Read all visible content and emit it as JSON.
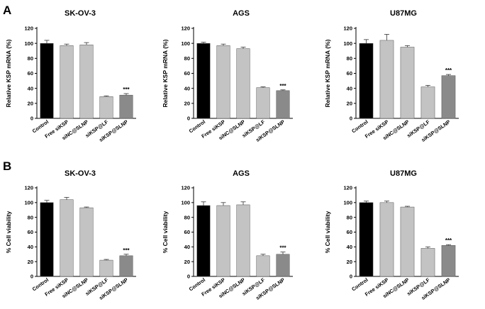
{
  "colors": {
    "Control": "#000000",
    "Free siKSP": "#c3c3c3",
    "siNC@SLNP": "#c3c3c3",
    "siKSP@LF": "#c3c3c3",
    "siKSP@SLNP": "#8a8a8a"
  },
  "panels": [
    {
      "letter": "A"
    },
    {
      "letter": "B"
    }
  ],
  "chart_data": [
    {
      "type": "bar",
      "panel": "A",
      "title": "SK-OV-3",
      "ylabel": "Relative KSP mRNA (%)",
      "ylim": [
        0,
        120
      ],
      "yticks": [
        0,
        20,
        40,
        60,
        80,
        100,
        120
      ],
      "categories": [
        "Control",
        "Free siKSP",
        "siNC@SLNP",
        "siKSP@LF",
        "siKSP@SLNP"
      ],
      "values": [
        100,
        97,
        98,
        29,
        31
      ],
      "errors": [
        4,
        2,
        3,
        1,
        2
      ],
      "annotations": [
        {
          "category": "siKSP@SLNP",
          "text": "***"
        }
      ]
    },
    {
      "type": "bar",
      "panel": "A",
      "title": "AGS",
      "ylabel": "Relative KSP mRNA (%)",
      "ylim": [
        0,
        120
      ],
      "yticks": [
        0,
        20,
        40,
        60,
        80,
        100,
        120
      ],
      "categories": [
        "Control",
        "Free siKSP",
        "siNC@SLNP",
        "siKSP@LF",
        "siKSP@SLNP"
      ],
      "values": [
        100,
        97,
        93,
        41,
        37
      ],
      "errors": [
        1.5,
        2,
        2,
        1,
        1
      ],
      "annotations": [
        {
          "category": "siKSP@SLNP",
          "text": "***"
        }
      ]
    },
    {
      "type": "bar",
      "panel": "A",
      "title": "U87MG",
      "ylabel": "Relative KSP mRNA (%)",
      "ylim": [
        0,
        120
      ],
      "yticks": [
        0,
        20,
        40,
        60,
        80,
        100,
        120
      ],
      "categories": [
        "Control",
        "Free siKSP",
        "siNC@SLNP",
        "siKSP@LF",
        "siKSP@SLNP"
      ],
      "values": [
        100,
        104,
        95,
        42,
        57
      ],
      "errors": [
        5,
        8,
        2,
        2,
        1.5
      ],
      "annotations": [
        {
          "category": "siKSP@SLNP",
          "text": "***"
        }
      ]
    },
    {
      "type": "bar",
      "panel": "B",
      "title": "SK-OV-3",
      "ylabel": "% Cell viability",
      "ylim": [
        0,
        120
      ],
      "yticks": [
        0,
        20,
        40,
        60,
        80,
        100,
        120
      ],
      "categories": [
        "Control",
        "Free siKSP",
        "siNC@SLNP",
        "siKSP@LF",
        "siKSP@SLNP"
      ],
      "values": [
        100,
        104,
        93,
        22,
        28
      ],
      "errors": [
        3,
        3,
        1,
        1,
        2
      ],
      "annotations": [
        {
          "category": "siKSP@SLNP",
          "text": "***"
        }
      ]
    },
    {
      "type": "bar",
      "panel": "B",
      "title": "AGS",
      "ylabel": "% Cell viability",
      "ylim": [
        0,
        120
      ],
      "yticks": [
        0,
        20,
        40,
        60,
        80,
        100,
        120
      ],
      "categories": [
        "Control",
        "Free siKSP",
        "siNC@SLNP",
        "siKSP@LF",
        "siKSP@SLNP"
      ],
      "values": [
        96,
        96,
        97,
        28,
        30
      ],
      "errors": [
        5,
        4,
        4,
        2,
        3
      ],
      "annotations": [
        {
          "category": "siKSP@SLNP",
          "text": "***"
        }
      ]
    },
    {
      "type": "bar",
      "panel": "B",
      "title": "U87MG",
      "ylabel": "% Cell viability",
      "ylim": [
        0,
        120
      ],
      "yticks": [
        0,
        20,
        40,
        60,
        80,
        100,
        120
      ],
      "categories": [
        "Control",
        "Free siKSP",
        "siNC@SLNP",
        "siKSP@LF",
        "siKSP@SLNP"
      ],
      "values": [
        100,
        100,
        94,
        38,
        42
      ],
      "errors": [
        2,
        2,
        1,
        2,
        1
      ],
      "annotations": [
        {
          "category": "siKSP@SLNP",
          "text": "***"
        }
      ]
    }
  ]
}
